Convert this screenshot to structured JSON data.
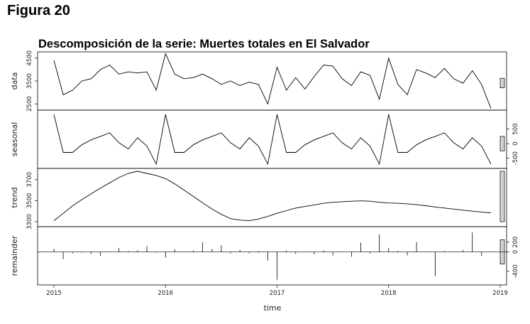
{
  "figure_label": "Figura 20",
  "chart_data": {
    "type": "line",
    "title": "Descomposición de la serie: Muertes totales en El Salvador",
    "xlabel": "time",
    "xlim": [
      2015,
      2019
    ],
    "x_ticks": [
      "2015",
      "2016",
      "2017",
      "2018",
      "2019"
    ],
    "x": [
      2015.0,
      2015.083,
      2015.167,
      2015.25,
      2015.333,
      2015.417,
      2015.5,
      2015.583,
      2015.667,
      2015.75,
      2015.833,
      2015.917,
      2016.0,
      2016.083,
      2016.167,
      2016.25,
      2016.333,
      2016.417,
      2016.5,
      2016.583,
      2016.667,
      2016.75,
      2016.833,
      2016.917,
      2017.0,
      2017.083,
      2017.167,
      2017.25,
      2017.333,
      2017.417,
      2017.5,
      2017.583,
      2017.667,
      2017.75,
      2017.833,
      2017.917,
      2018.0,
      2018.083,
      2018.167,
      2018.25,
      2018.333,
      2018.417,
      2018.5,
      2018.583,
      2018.667,
      2018.75,
      2018.833,
      2018.917
    ],
    "panels": [
      {
        "name": "data",
        "ylabel": "data",
        "ylim": [
          2350,
          4650
        ],
        "tick_labels": [
          "2500",
          "3500",
          "4500"
        ],
        "tick_values": [
          2500,
          3500,
          4500
        ],
        "right_ticks": false,
        "bar_range": [
          3200,
          3620
        ],
        "values": [
          4400,
          2900,
          3100,
          3500,
          3600,
          4000,
          4200,
          3800,
          3900,
          3850,
          3900,
          3100,
          4700,
          3800,
          3600,
          3650,
          3800,
          3600,
          3350,
          3500,
          3300,
          3450,
          3350,
          2500,
          4100,
          3100,
          3650,
          3150,
          3700,
          4200,
          4150,
          3600,
          3300,
          3900,
          3750,
          2700,
          4500,
          3350,
          2900,
          4000,
          3850,
          3650,
          4050,
          3600,
          3400,
          3950,
          3350,
          2300
        ]
      },
      {
        "name": "seasonal",
        "ylabel": "seasonal",
        "ylim": [
          -750,
          1050
        ],
        "tick_labels": [
          "-500",
          "0",
          "500"
        ],
        "tick_values": [
          -500,
          0,
          500
        ],
        "right_ticks": true,
        "bar_range": [
          -250,
          250
        ],
        "values": [
          1000,
          -300,
          -300,
          -40,
          130,
          250,
          370,
          30,
          -180,
          200,
          -80,
          -700,
          1000,
          -300,
          -300,
          -40,
          130,
          250,
          370,
          30,
          -180,
          200,
          -80,
          -700,
          1000,
          -300,
          -300,
          -40,
          130,
          250,
          370,
          30,
          -180,
          200,
          -80,
          -700,
          1000,
          -300,
          -300,
          -40,
          130,
          250,
          370,
          30,
          -180,
          200,
          -80,
          -700
        ]
      },
      {
        "name": "trend",
        "ylabel": "trend",
        "ylim": [
          3280,
          3780
        ],
        "tick_labels": [
          "3300",
          "3500",
          "3700"
        ],
        "tick_values": [
          3300,
          3500,
          3700
        ],
        "right_ticks": false,
        "bar_range": [
          3300,
          3780
        ],
        "values": [
          3310,
          3380,
          3450,
          3510,
          3565,
          3620,
          3670,
          3720,
          3760,
          3780,
          3760,
          3740,
          3710,
          3660,
          3600,
          3540,
          3480,
          3420,
          3370,
          3330,
          3315,
          3310,
          3325,
          3350,
          3380,
          3405,
          3430,
          3445,
          3460,
          3475,
          3485,
          3490,
          3495,
          3498,
          3495,
          3485,
          3478,
          3475,
          3470,
          3462,
          3452,
          3440,
          3430,
          3420,
          3410,
          3400,
          3392,
          3385
        ]
      },
      {
        "name": "remainder",
        "ylabel": "remainder",
        "ylim": [
          -620,
          460
        ],
        "tick_labels": [
          "-400",
          "0",
          "200"
        ],
        "tick_values": [
          -400,
          0,
          200
        ],
        "right_ticks": true,
        "bar_range": [
          -250,
          250
        ],
        "values": [
          60,
          -150,
          -30,
          -15,
          -40,
          -80,
          10,
          80,
          20,
          35,
          120,
          -15,
          -120,
          55,
          10,
          30,
          200,
          60,
          140,
          -30,
          40,
          -30,
          20,
          -180,
          -570,
          30,
          -40,
          -10,
          -50,
          30,
          -75,
          0,
          -100,
          190,
          -30,
          360,
          80,
          20,
          -70,
          200,
          0,
          -500,
          20,
          0,
          40,
          400,
          -80,
          10
        ]
      }
    ]
  }
}
